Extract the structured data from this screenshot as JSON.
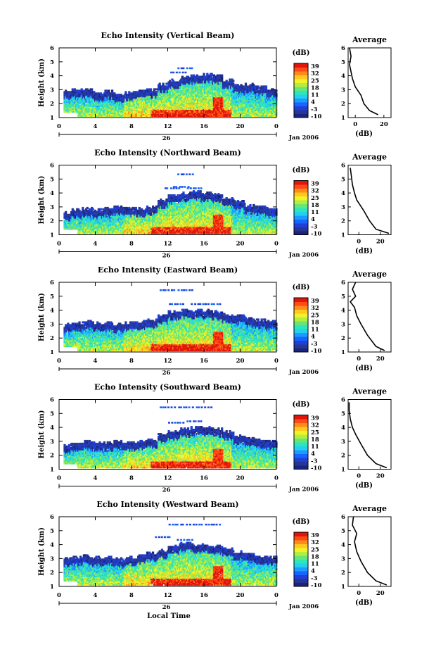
{
  "chart_data": {
    "type": "heatmap",
    "xlabel": "Local Time",
    "date_label": "Jan 2006",
    "day_label": "26",
    "x_ticks": [
      "0",
      "4",
      "8",
      "12",
      "16",
      "20",
      "0"
    ],
    "y_ticks": [
      "1",
      "2",
      "3",
      "4",
      "5",
      "6"
    ],
    "ylabel": "Height (km)",
    "ylim": [
      1,
      6
    ],
    "colorbar": {
      "unit": "(dB)",
      "ticks": [
        "39",
        "32",
        "25",
        "18",
        "11",
        "4",
        "-3",
        "-10"
      ],
      "range": [
        -10,
        39
      ],
      "colors": [
        "#1a237e",
        "#283593",
        "#1e40d8",
        "#1565ff",
        "#1e9bff",
        "#22d0f0",
        "#2ee6b8",
        "#66e67a",
        "#b4ee3c",
        "#f2f22a",
        "#ffc81e",
        "#ff8c1a",
        "#ff4a14",
        "#e0160c"
      ]
    },
    "panels": [
      {
        "title": "Echo Intensity (Vertical Beam)",
        "avg_title": "Average",
        "avg_xlabel": "(dB)",
        "avg_xticks": [
          "0",
          "20"
        ],
        "avg_xlim": [
          -5,
          25
        ],
        "avg_profile": [
          [
            16,
            1.2
          ],
          [
            10,
            1.5
          ],
          [
            6,
            2.0
          ],
          [
            4,
            2.6
          ],
          [
            0,
            3.2
          ],
          [
            -2,
            3.8
          ],
          [
            -3,
            4.3
          ],
          [
            -4,
            4.8
          ],
          [
            -3,
            5.4
          ],
          [
            -4,
            6.0
          ]
        ],
        "cloud_top": [
          2.8,
          2.9,
          2.9,
          2.7,
          2.8,
          2.6,
          2.7,
          2.8,
          2.9,
          3.3,
          3.6,
          3.8,
          3.9,
          4.0,
          3.9,
          3.6,
          3.2,
          3.3,
          3.1,
          2.9
        ],
        "peak": 17.5,
        "scatter_high": [
          [
            12.2,
            4.3
          ],
          [
            13,
            4.6
          ]
        ]
      },
      {
        "title": "Echo Intensity (Northward Beam)",
        "avg_title": "Average",
        "avg_xlabel": "(dB)",
        "avg_xticks": [
          "0",
          "20"
        ],
        "avg_xlim": [
          -10,
          30
        ],
        "avg_profile": [
          [
            28,
            1.1
          ],
          [
            16,
            1.4
          ],
          [
            10,
            2.0
          ],
          [
            4,
            2.8
          ],
          [
            -2,
            3.5
          ],
          [
            -4,
            4.0
          ],
          [
            -6,
            4.6
          ],
          [
            -7,
            5.2
          ],
          [
            -8,
            5.8
          ]
        ],
        "cloud_top": [
          2.5,
          2.7,
          2.8,
          2.7,
          2.8,
          2.9,
          2.8,
          2.8,
          2.9,
          3.4,
          3.7,
          3.9,
          4.0,
          3.9,
          3.8,
          3.6,
          3.3,
          3.0,
          2.9,
          2.8
        ],
        "peak": 17.5,
        "scatter_high": [
          [
            11.5,
            4.4
          ],
          [
            12.5,
            4.5
          ],
          [
            13,
            5.4
          ],
          [
            14,
            4.4
          ]
        ]
      },
      {
        "title": "Echo Intensity (Eastward Beam)",
        "avg_title": "Average",
        "avg_xlabel": "(dB)",
        "avg_xticks": [
          "0",
          "20"
        ],
        "avg_xlim": [
          -10,
          30
        ],
        "avg_profile": [
          [
            24,
            1.1
          ],
          [
            16,
            1.4
          ],
          [
            8,
            2.2
          ],
          [
            2,
            3.0
          ],
          [
            -2,
            3.6
          ],
          [
            -4,
            4.2
          ],
          [
            -8,
            4.6
          ],
          [
            -3,
            5.0
          ],
          [
            -6,
            5.5
          ],
          [
            -3,
            6.0
          ]
        ],
        "cloud_top": [
          2.9,
          3.0,
          3.1,
          3.0,
          3.0,
          2.9,
          3.0,
          3.1,
          3.2,
          3.5,
          3.8,
          3.9,
          3.9,
          3.9,
          3.8,
          3.6,
          3.5,
          3.3,
          3.2,
          3.1
        ],
        "peak": 17.5,
        "scatter_high": [
          [
            11,
            5.5
          ],
          [
            12,
            4.5
          ],
          [
            13,
            5.5
          ],
          [
            14.5,
            4.5
          ],
          [
            16,
            4.5
          ]
        ]
      },
      {
        "title": "Echo Intensity (Southward Beam)",
        "avg_title": "Average",
        "avg_xlabel": "(dB)",
        "avg_xticks": [
          "0",
          "20"
        ],
        "avg_xlim": [
          -10,
          30
        ],
        "avg_profile": [
          [
            26,
            1.1
          ],
          [
            16,
            1.4
          ],
          [
            8,
            2.0
          ],
          [
            2,
            2.8
          ],
          [
            -3,
            3.5
          ],
          [
            -6,
            4.0
          ],
          [
            -8,
            4.6
          ],
          [
            -9,
            5.2
          ],
          [
            -9,
            5.8
          ]
        ],
        "cloud_top": [
          2.6,
          2.8,
          2.9,
          2.8,
          2.8,
          2.9,
          2.8,
          2.9,
          3.0,
          3.4,
          3.6,
          3.8,
          3.9,
          3.9,
          3.8,
          3.6,
          3.3,
          3.1,
          3.0,
          2.9
        ],
        "peak": 17.5,
        "scatter_high": [
          [
            11,
            5.5
          ],
          [
            12,
            4.4
          ],
          [
            13,
            5.5
          ],
          [
            14,
            4.5
          ],
          [
            15,
            5.5
          ]
        ]
      },
      {
        "title": "Echo Intensity (Westward Beam)",
        "avg_title": "Average",
        "avg_xlabel": "(dB)",
        "avg_xticks": [
          "0",
          "20"
        ],
        "avg_xlim": [
          -10,
          30
        ],
        "avg_profile": [
          [
            26,
            1.1
          ],
          [
            16,
            1.4
          ],
          [
            8,
            2.0
          ],
          [
            2,
            2.8
          ],
          [
            -2,
            3.5
          ],
          [
            -4,
            4.2
          ],
          [
            -2,
            4.8
          ],
          [
            -6,
            5.4
          ],
          [
            -5,
            6.0
          ]
        ],
        "cloud_top": [
          2.9,
          3.0,
          3.1,
          3.0,
          3.0,
          2.9,
          3.0,
          3.1,
          3.3,
          3.5,
          3.8,
          4.0,
          3.9,
          3.9,
          3.8,
          3.6,
          3.4,
          3.2,
          3.1,
          3.0
        ],
        "peak": 17.5,
        "scatter_high": [
          [
            10.5,
            4.6
          ],
          [
            12,
            5.5
          ],
          [
            13,
            4.4
          ],
          [
            14,
            5.5
          ],
          [
            16,
            5.5
          ]
        ]
      }
    ]
  }
}
